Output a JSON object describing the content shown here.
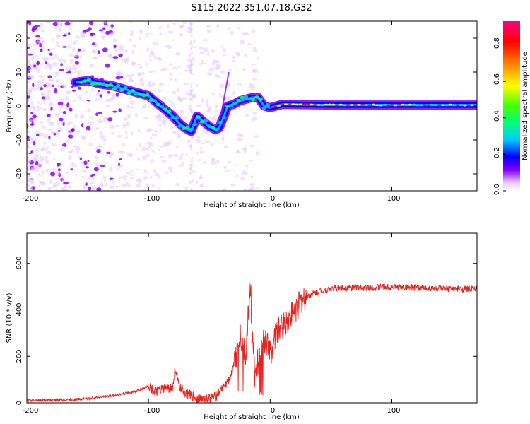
{
  "title": "S115.2022.351.07.18.G32",
  "chart_data": [
    {
      "type": "heatmap",
      "xlabel": "Height of straight line (km)",
      "ylabel": "Frequency (Hz)",
      "xlim": [
        -200,
        170
      ],
      "ylim": [
        -25,
        25
      ],
      "xticks": [
        "-200",
        "-100",
        "0",
        "100"
      ],
      "yticks": [
        "-20",
        "-10",
        "0",
        "10",
        "20"
      ],
      "colorbar": {
        "label": "Normalized spectral amplitude",
        "range": [
          0,
          0.93
        ],
        "ticks": [
          "0.0",
          "0.2",
          "0.4",
          "0.6",
          "0.8"
        ],
        "colormap": [
          "#ffffff",
          "#e6c8ff",
          "#8a00ff",
          "#0000ff",
          "#00c8ff",
          "#00ff80",
          "#40ff00",
          "#ffff00",
          "#ff8000",
          "#ff0000",
          "#ff0080"
        ]
      },
      "ridge_frequency_hz": {
        "x": [
          -160,
          -150,
          -140,
          -130,
          -120,
          -110,
          -100,
          -95,
          -90,
          -85,
          -80,
          -75,
          -70,
          -65,
          -60,
          -55,
          -50,
          -45,
          -42,
          -38,
          -35,
          -30,
          -25,
          -20,
          -15,
          -10,
          -5,
          0,
          10,
          50,
          100,
          170
        ],
        "y": [
          7,
          7.5,
          6.5,
          6,
          5,
          4,
          3,
          1.5,
          0,
          -1.5,
          -3,
          -5,
          -6.5,
          -7.5,
          -3,
          -4.5,
          -6,
          -7,
          -6.5,
          -3,
          0,
          0.5,
          1.5,
          2,
          2.5,
          2.5,
          0,
          -0.5,
          0.5,
          0.3,
          0.3,
          0.3
        ]
      }
    },
    {
      "type": "line",
      "xlabel": "Height of straight line (km)",
      "ylabel": "SNR (10 * v/v)",
      "xlim": [
        -200,
        170
      ],
      "ylim": [
        0,
        730
      ],
      "xticks": [
        "-200",
        "-100",
        "0",
        "100"
      ],
      "yticks": [
        "0",
        "200",
        "400",
        "600"
      ],
      "color": "#e8201e",
      "series": [
        {
          "x": [
            -200,
            -180,
            -160,
            -150,
            -140,
            -130,
            -120,
            -110,
            -105,
            -100,
            -95,
            -90,
            -85,
            -80,
            -78,
            -75,
            -70,
            -65,
            -60,
            -55,
            -50,
            -45,
            -40,
            -35,
            -30,
            -28,
            -25,
            -22,
            -20,
            -18,
            -16,
            -15,
            -12,
            -10,
            -8,
            -5,
            -2,
            0,
            5,
            10,
            15,
            20,
            25,
            30,
            40,
            50,
            60,
            80,
            100,
            120,
            140,
            150,
            170
          ],
          "y": [
            10,
            12,
            15,
            18,
            25,
            30,
            40,
            50,
            60,
            75,
            45,
            55,
            60,
            65,
            150,
            70,
            45,
            30,
            20,
            15,
            20,
            25,
            60,
            90,
            150,
            200,
            300,
            250,
            200,
            400,
            500,
            280,
            150,
            180,
            240,
            270,
            250,
            210,
            300,
            330,
            360,
            400,
            430,
            460,
            480,
            490,
            495,
            495,
            500,
            495,
            490,
            490,
            490
          ]
        }
      ]
    }
  ]
}
